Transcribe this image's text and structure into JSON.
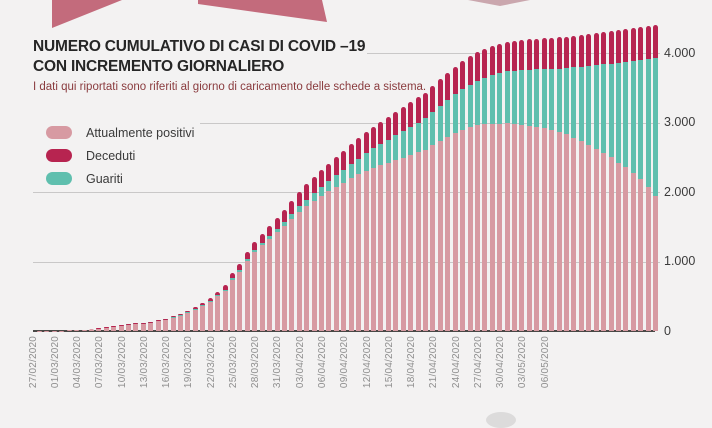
{
  "page": {
    "background": "#f3f2f2"
  },
  "decor": {
    "banner_color": "#c36b7c",
    "banner_color_light": "#caa7ae"
  },
  "header": {
    "title_line1": "NUMERO CUMULATIVO DI CASI DI COVID –19",
    "title_line2": "CON INCREMENTO GIORNALIERO",
    "subtitle": "I dati qui riportati sono riferiti al giorno di caricamento delle schede a sistema."
  },
  "legend": [
    {
      "label": "Attualmente positivi",
      "color": "#d79aa2"
    },
    {
      "label": "Deceduti",
      "color": "#b72450"
    },
    {
      "label": "Guariti",
      "color": "#5fbfae"
    }
  ],
  "chart_data": {
    "type": "bar",
    "stacked": true,
    "title": "Numero cumulativo di casi di COVID-19 con incremento giornaliero",
    "x_tick_labels": [
      "27/02/2020",
      "01/03/2020",
      "04/03/2020",
      "07/03/2020",
      "10/03/2020",
      "13/03/2020",
      "16/03/2020",
      "19/03/2020",
      "22/03/2020",
      "25/03/2020",
      "28/03/2020",
      "31/03/2020",
      "03/04/2020",
      "06/04/2020",
      "09/04/2020",
      "12/04/2020",
      "15/04/2020",
      "18/04/2020",
      "21/04/2020",
      "24/04/2020",
      "27/04/2020",
      "30/04/2020",
      "03/05/2020",
      "06/05/2020"
    ],
    "tick_every_n_bars": 3,
    "n_bars": 84,
    "bar_interval_days": 1,
    "y_ticks": [
      "4.000",
      "3.000",
      "2.000",
      "1.000",
      "0"
    ],
    "ylim": [
      0,
      4400
    ],
    "grid": true,
    "legend_position": "top-left",
    "stack_order_bottom_to_top": [
      "Attualmente positivi",
      "Guariti",
      "Deceduti"
    ],
    "series": [
      {
        "name": "Attualmente positivi",
        "color": "#d79aa2",
        "values": [
          2,
          3,
          4,
          6,
          8,
          11,
          16,
          28,
          41,
          57,
          70,
          82,
          91,
          101,
          112,
          126,
          145,
          166,
          192,
          225,
          263,
          308,
          362,
          424,
          498,
          580,
          736,
          850,
          1002,
          1132,
          1232,
          1325,
          1418,
          1510,
          1615,
          1713,
          1796,
          1873,
          1945,
          2011,
          2076,
          2136,
          2195,
          2254,
          2306,
          2351,
          2386,
          2423,
          2460,
          2495,
          2533,
          2570,
          2607,
          2675,
          2733,
          2791,
          2850,
          2899,
          2933,
          2958,
          2973,
          2979,
          2985,
          2986,
          2973,
          2960,
          2945,
          2929,
          2914,
          2898,
          2870,
          2828,
          2784,
          2734,
          2679,
          2626,
          2567,
          2498,
          2411,
          2355,
          2269,
          2183,
          2077,
          1940
        ]
      },
      {
        "name": "Guariti",
        "color": "#5fbfae",
        "values": [
          0,
          0,
          0,
          0,
          0,
          0,
          0,
          0,
          0,
          0,
          0,
          0,
          1,
          1,
          1,
          1,
          2,
          3,
          4,
          5,
          6,
          8,
          10,
          12,
          14,
          17,
          20,
          24,
          28,
          33,
          38,
          45,
          52,
          60,
          70,
          82,
          96,
          112,
          128,
          146,
          165,
          185,
          206,
          228,
          252,
          278,
          305,
          330,
          355,
          380,
          405,
          430,
          455,
          480,
          505,
          530,
          555,
          580,
          610,
          640,
          670,
          700,
          725,
          750,
          775,
          795,
          815,
          835,
          855,
          875,
          905,
          955,
          1010,
          1070,
          1135,
          1200,
          1270,
          1350,
          1450,
          1520,
          1620,
          1720,
          1840,
          1990
        ]
      },
      {
        "name": "Deceduti",
        "color": "#b72450",
        "values": [
          0,
          0,
          0,
          0,
          0,
          0,
          0,
          0,
          1,
          1,
          2,
          2,
          3,
          4,
          5,
          6,
          8,
          11,
          14,
          18,
          23,
          29,
          36,
          44,
          53,
          63,
          74,
          86,
          100,
          115,
          130,
          145,
          160,
          175,
          190,
          205,
          218,
          230,
          242,
          253,
          264,
          274,
          284,
          293,
          302,
          311,
          319,
          327,
          335,
          345,
          352,
          360,
          368,
          375,
          382,
          389,
          395,
          401,
          407,
          412,
          417,
          421,
          425,
          429,
          432,
          435,
          438,
          441,
          443,
          445,
          450,
          452,
          454,
          456,
          458,
          459,
          461,
          462,
          464,
          465,
          466,
          467,
          468,
          470
        ]
      }
    ]
  }
}
